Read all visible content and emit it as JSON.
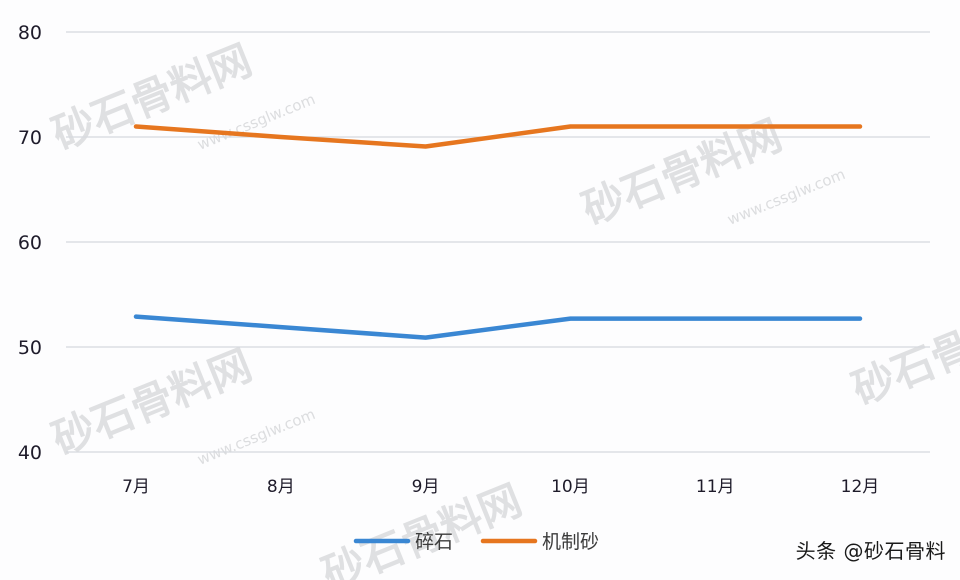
{
  "chart_data": {
    "type": "line",
    "title": "",
    "xlabel": "",
    "ylabel": "",
    "categories": [
      "7月",
      "8月",
      "9月",
      "10月",
      "11月",
      "12月"
    ],
    "series": [
      {
        "name": "碎石",
        "color": "#3a87d3",
        "values": [
          52.9,
          51.9,
          50.9,
          52.7,
          52.7,
          52.7
        ]
      },
      {
        "name": "机制砂",
        "color": "#e6761f",
        "values": [
          71.0,
          70.0,
          69.1,
          71.0,
          71.0,
          71.0
        ]
      }
    ],
    "ylim": [
      40,
      80
    ],
    "yticks": [
      40,
      50,
      60,
      70,
      80
    ],
    "grid": true,
    "legend_position": "bottom"
  },
  "ytick_labels": [
    "80",
    "70",
    "60",
    "50",
    "40"
  ],
  "legend": {
    "items": [
      {
        "label": "碎石",
        "color": "#3a87d3"
      },
      {
        "label": "机制砂",
        "color": "#e6761f"
      }
    ]
  },
  "watermark": {
    "brand": "砂石骨料网",
    "url": "www.cssglw.com"
  },
  "credit": "头条 @砂石骨料"
}
